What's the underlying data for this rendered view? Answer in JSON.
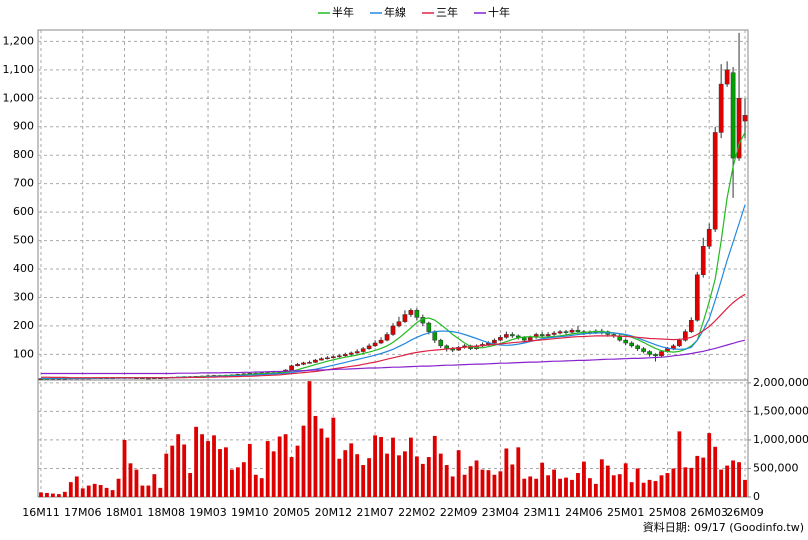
{
  "chart_data": {
    "type": "candlestick",
    "legend_position": "top",
    "grid": true,
    "up_color": "#dd0000",
    "down_color": "#00a000",
    "categories": [
      "16M11",
      null,
      null,
      null,
      null,
      null,
      null,
      "17M06",
      null,
      null,
      null,
      null,
      null,
      null,
      "18M01",
      null,
      null,
      null,
      null,
      null,
      null,
      "18M08",
      null,
      null,
      null,
      null,
      null,
      null,
      "19M03",
      null,
      null,
      null,
      null,
      null,
      null,
      "19M10",
      null,
      null,
      null,
      null,
      null,
      null,
      "20M05",
      null,
      null,
      null,
      null,
      null,
      null,
      "20M12",
      null,
      null,
      null,
      null,
      null,
      null,
      "21M07",
      null,
      null,
      null,
      null,
      null,
      null,
      "22M02",
      null,
      null,
      null,
      null,
      null,
      null,
      "22M09",
      null,
      null,
      null,
      null,
      null,
      null,
      "23M04",
      null,
      null,
      null,
      null,
      null,
      null,
      "23M11",
      null,
      null,
      null,
      null,
      null,
      null,
      "24M06",
      null,
      null,
      null,
      null,
      null,
      null,
      "25M01",
      null,
      null,
      null,
      null,
      null,
      null,
      "25M08",
      null,
      null,
      null,
      null,
      null,
      null,
      "26M03",
      null,
      null,
      null,
      null,
      null,
      "26M09"
    ],
    "open": [
      15,
      15,
      16,
      16,
      15,
      16,
      17,
      17,
      16,
      17,
      18,
      18,
      17,
      18,
      19,
      19,
      18,
      18,
      17,
      17,
      18,
      18,
      19,
      20,
      21,
      22,
      22,
      23,
      24,
      25,
      26,
      26,
      27,
      28,
      30,
      32,
      34,
      33,
      35,
      36,
      34,
      38,
      45,
      60,
      65,
      70,
      72,
      80,
      85,
      88,
      92,
      95,
      100,
      105,
      110,
      120,
      130,
      140,
      150,
      170,
      200,
      215,
      240,
      255,
      230,
      210,
      180,
      150,
      130,
      120,
      115,
      125,
      130,
      120,
      130,
      135,
      140,
      150,
      160,
      170,
      165,
      160,
      150,
      160,
      170,
      165,
      170,
      175,
      180,
      178,
      185,
      180,
      175,
      178,
      182,
      180,
      170,
      165,
      150,
      140,
      130,
      120,
      110,
      100,
      95,
      110,
      120,
      130,
      150,
      180,
      220,
      380,
      480,
      540,
      880,
      1050,
      1090,
      790,
      920
    ],
    "high": [
      16,
      17,
      17,
      17,
      17,
      18,
      18,
      18,
      18,
      19,
      19,
      19,
      19,
      20,
      20,
      20,
      19,
      19,
      18,
      19,
      19,
      20,
      21,
      22,
      23,
      24,
      24,
      25,
      27,
      28,
      28,
      29,
      30,
      32,
      34,
      36,
      36,
      37,
      39,
      38,
      40,
      48,
      64,
      70,
      74,
      78,
      84,
      90,
      94,
      96,
      100,
      106,
      110,
      118,
      126,
      138,
      150,
      160,
      178,
      210,
      232,
      255,
      262,
      262,
      240,
      215,
      185,
      155,
      135,
      126,
      130,
      136,
      134,
      135,
      142,
      146,
      156,
      168,
      180,
      178,
      170,
      164,
      166,
      176,
      178,
      178,
      182,
      186,
      186,
      192,
      200,
      186,
      184,
      188,
      190,
      184,
      176,
      170,
      155,
      146,
      135,
      126,
      115,
      104,
      114,
      126,
      136,
      156,
      188,
      230,
      390,
      510,
      560,
      900,
      1120,
      1130,
      1110,
      1230,
      1000
    ],
    "low": [
      14,
      14,
      15,
      14,
      14,
      15,
      16,
      15,
      15,
      16,
      17,
      16,
      16,
      17,
      18,
      17,
      17,
      16,
      16,
      16,
      17,
      17,
      18,
      19,
      20,
      21,
      21,
      22,
      23,
      24,
      24,
      25,
      26,
      27,
      29,
      30,
      31,
      32,
      34,
      30,
      32,
      37,
      44,
      58,
      62,
      68,
      70,
      78,
      82,
      85,
      88,
      92,
      96,
      102,
      106,
      116,
      126,
      136,
      146,
      165,
      195,
      210,
      232,
      220,
      200,
      170,
      140,
      122,
      110,
      108,
      112,
      120,
      115,
      116,
      126,
      130,
      136,
      146,
      155,
      158,
      152,
      142,
      146,
      155,
      160,
      160,
      165,
      170,
      170,
      172,
      175,
      168,
      170,
      172,
      170,
      162,
      158,
      145,
      132,
      124,
      112,
      104,
      92,
      75,
      90,
      106,
      115,
      126,
      145,
      175,
      215,
      370,
      470,
      530,
      860,
      1040,
      650,
      780,
      860
    ],
    "close": [
      15,
      16,
      16,
      15,
      16,
      17,
      17,
      16,
      17,
      18,
      18,
      17,
      18,
      19,
      19,
      18,
      18,
      17,
      17,
      18,
      18,
      19,
      20,
      21,
      22,
      22,
      23,
      24,
      25,
      26,
      26,
      27,
      28,
      30,
      32,
      34,
      33,
      35,
      36,
      34,
      38,
      45,
      60,
      65,
      70,
      72,
      80,
      85,
      88,
      92,
      95,
      100,
      105,
      110,
      120,
      130,
      140,
      150,
      170,
      200,
      215,
      240,
      255,
      230,
      210,
      180,
      150,
      130,
      120,
      115,
      125,
      130,
      120,
      130,
      135,
      140,
      150,
      160,
      170,
      165,
      160,
      150,
      160,
      170,
      165,
      170,
      175,
      180,
      178,
      185,
      180,
      175,
      178,
      182,
      180,
      170,
      165,
      150,
      140,
      130,
      120,
      110,
      100,
      95,
      110,
      120,
      130,
      150,
      180,
      220,
      380,
      480,
      540,
      880,
      1050,
      1100,
      790,
      1000,
      940
    ],
    "ylim": [
      10,
      1240
    ],
    "yticks": [
      100,
      200,
      300,
      400,
      500,
      600,
      700,
      800,
      900,
      {
        "value": 1000,
        "label": "1,000"
      },
      {
        "value": 1100,
        "label": "1,100"
      },
      {
        "value": 1200,
        "label": "1,200"
      }
    ],
    "series": [
      {
        "name": "半年",
        "color": "#22bb22",
        "values": [
          15,
          15,
          16,
          16,
          16,
          16,
          16,
          16,
          16,
          17,
          17,
          17,
          17,
          18,
          18,
          18,
          18,
          18,
          18,
          18,
          18,
          18,
          18,
          19,
          20,
          20,
          21,
          22,
          22,
          23,
          24,
          25,
          26,
          27,
          28,
          30,
          31,
          32,
          33,
          34,
          35,
          37,
          41,
          46,
          52,
          58,
          64,
          70,
          76,
          81,
          86,
          90,
          94,
          98,
          103,
          108,
          114,
          121,
          130,
          142,
          158,
          175,
          193,
          212,
          225,
          228,
          220,
          205,
          188,
          170,
          155,
          140,
          128,
          124,
          123,
          127,
          132,
          138,
          145,
          152,
          158,
          161,
          162,
          161,
          160,
          161,
          163,
          165,
          168,
          172,
          175,
          177,
          179,
          180,
          180,
          178,
          176,
          172,
          167,
          160,
          152,
          142,
          131,
          121,
          113,
          110,
          108,
          111,
          118,
          130,
          150,
          215,
          285,
          365,
          500,
          650,
          760,
          840,
          880
        ]
      },
      {
        "name": "年線",
        "color": "#2288dd",
        "values": [
          16,
          16,
          16,
          16,
          16,
          16,
          16,
          16,
          16,
          16,
          17,
          17,
          17,
          17,
          17,
          17,
          18,
          18,
          18,
          18,
          18,
          18,
          18,
          19,
          19,
          19,
          20,
          20,
          21,
          22,
          23,
          23,
          24,
          25,
          26,
          27,
          28,
          29,
          30,
          31,
          32,
          33,
          36,
          39,
          42,
          45,
          48,
          52,
          57,
          62,
          67,
          72,
          77,
          82,
          87,
          92,
          97,
          103,
          110,
          118,
          128,
          138,
          150,
          160,
          169,
          176,
          180,
          182,
          182,
          180,
          176,
          170,
          163,
          156,
          148,
          141,
          136,
          133,
          132,
          133,
          136,
          140,
          145,
          150,
          155,
          158,
          160,
          162,
          164,
          167,
          170,
          172,
          174,
          175,
          176,
          176,
          175,
          173,
          170,
          165,
          158,
          150,
          142,
          134,
          127,
          122,
          119,
          118,
          119,
          125,
          150,
          185,
          225,
          290,
          360,
          430,
          495,
          560,
          625
        ]
      },
      {
        "name": "三年",
        "color": "#dd2244",
        "values": [
          20,
          20,
          19,
          19,
          19,
          18,
          18,
          18,
          18,
          18,
          18,
          18,
          18,
          18,
          18,
          18,
          18,
          18,
          18,
          18,
          18,
          18,
          18,
          18,
          18,
          19,
          19,
          19,
          20,
          20,
          21,
          21,
          22,
          22,
          23,
          23,
          24,
          25,
          26,
          27,
          28,
          30,
          32,
          34,
          36,
          38,
          40,
          43,
          46,
          49,
          52,
          55,
          58,
          61,
          65,
          69,
          73,
          78,
          83,
          88,
          93,
          98,
          103,
          107,
          110,
          113,
          115,
          117,
          119,
          121,
          123,
          125,
          127,
          129,
          131,
          133,
          135,
          137,
          139,
          141,
          143,
          145,
          147,
          149,
          151,
          153,
          155,
          157,
          159,
          161,
          162,
          163,
          164,
          165,
          165,
          165,
          165,
          164,
          163,
          162,
          160,
          158,
          156,
          155,
          154,
          153,
          152,
          153,
          155,
          160,
          170,
          183,
          198,
          218,
          240,
          262,
          282,
          298,
          311
        ]
      },
      {
        "name": "十年",
        "color": "#8822cc",
        "values": [
          33,
          33,
          33,
          33,
          33,
          33,
          33,
          33,
          33,
          33,
          33,
          33,
          33,
          33,
          33,
          33,
          33,
          33,
          33,
          33,
          33,
          33,
          33,
          34,
          34,
          34,
          34,
          35,
          35,
          35,
          35,
          36,
          36,
          36,
          37,
          37,
          38,
          38,
          39,
          40,
          40,
          41,
          42,
          42,
          43,
          44,
          45,
          45,
          46,
          47,
          48,
          48,
          49,
          50,
          51,
          52,
          52,
          53,
          54,
          55,
          55,
          56,
          57,
          58,
          59,
          59,
          60,
          61,
          62,
          62,
          63,
          64,
          65,
          66,
          66,
          67,
          68,
          69,
          69,
          70,
          71,
          72,
          73,
          73,
          74,
          75,
          76,
          76,
          77,
          78,
          79,
          79,
          80,
          81,
          82,
          83,
          83,
          84,
          85,
          86,
          86,
          87,
          88,
          89,
          90,
          92,
          95,
          97,
          100,
          103,
          107,
          111,
          116,
          121,
          127,
          133,
          139,
          145,
          150
        ]
      }
    ],
    "volume": {
      "color": "#dd0000",
      "values": [
        80000,
        70000,
        60000,
        50000,
        90000,
        260000,
        360000,
        150000,
        200000,
        230000,
        210000,
        160000,
        120000,
        320000,
        1000000,
        590000,
        480000,
        200000,
        200000,
        400000,
        160000,
        760000,
        900000,
        1100000,
        920000,
        420000,
        1230000,
        1100000,
        980000,
        1080000,
        840000,
        870000,
        480000,
        520000,
        610000,
        930000,
        390000,
        330000,
        980000,
        800000,
        1060000,
        1100000,
        700000,
        900000,
        1250000,
        2030000,
        1420000,
        1200000,
        1040000,
        1390000,
        670000,
        820000,
        940000,
        750000,
        560000,
        680000,
        1080000,
        1050000,
        760000,
        1040000,
        730000,
        800000,
        1040000,
        710000,
        580000,
        700000,
        1070000,
        760000,
        560000,
        360000,
        820000,
        390000,
        540000,
        640000,
        480000,
        470000,
        390000,
        450000,
        850000,
        570000,
        870000,
        320000,
        360000,
        320000,
        600000,
        380000,
        480000,
        320000,
        340000,
        300000,
        420000,
        620000,
        330000,
        230000,
        660000,
        550000,
        380000,
        400000,
        590000,
        260000,
        500000,
        250000,
        300000,
        280000,
        380000,
        420000,
        500000,
        1150000,
        520000,
        510000,
        720000,
        690000,
        1120000,
        880000,
        480000,
        550000,
        640000,
        610000,
        300000
      ],
      "ylim": [
        0,
        2050000
      ],
      "yticks": [
        0,
        {
          "value": 500000,
          "label": "500,000"
        },
        {
          "value": 1000000,
          "label": "1,000,000"
        },
        {
          "value": 1500000,
          "label": "1,500,000"
        },
        {
          "value": 2000000,
          "label": "2,000,000"
        }
      ]
    },
    "footnote": "資料日期: 09/17 (Goodinfo.tw)"
  }
}
